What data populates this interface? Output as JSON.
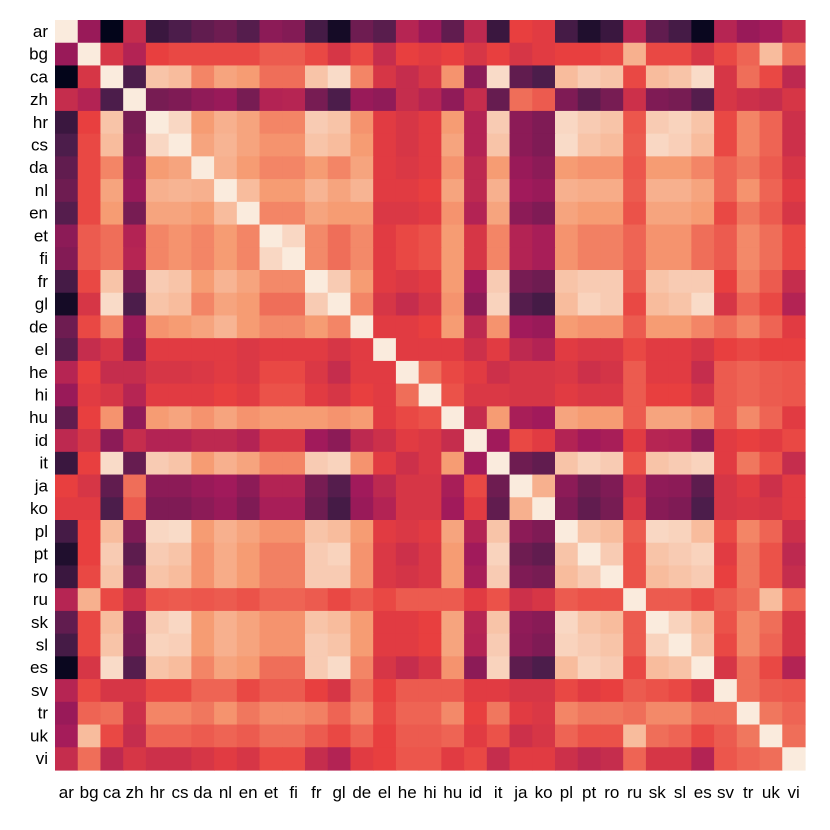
{
  "chart_data": {
    "type": "heatmap",
    "title": "",
    "xlabel": "",
    "ylabel": "",
    "labels": [
      "ar",
      "bg",
      "ca",
      "zh",
      "hr",
      "cs",
      "da",
      "nl",
      "en",
      "et",
      "fi",
      "fr",
      "gl",
      "de",
      "el",
      "he",
      "hi",
      "hu",
      "id",
      "it",
      "ja",
      "ko",
      "pl",
      "pt",
      "ro",
      "ru",
      "sk",
      "sl",
      "es",
      "sv",
      "tr",
      "uk",
      "vi"
    ],
    "value_range": [
      0,
      1
    ],
    "colorscale": [
      "#03051a",
      "#4c1d4b",
      "#a11a5b",
      "#e83f3f",
      "#f69c73",
      "#faebdd"
    ],
    "grid": false,
    "values": [
      [
        1.0,
        0.38,
        0.0,
        0.5,
        0.15,
        0.2,
        0.25,
        0.28,
        0.22,
        0.35,
        0.33,
        0.18,
        0.05,
        0.28,
        0.23,
        0.46,
        0.38,
        0.25,
        0.48,
        0.15,
        0.6,
        0.58,
        0.18,
        0.08,
        0.15,
        0.46,
        0.25,
        0.18,
        0.02,
        0.46,
        0.38,
        0.41,
        0.5
      ],
      [
        0.38,
        1.0,
        0.55,
        0.45,
        0.6,
        0.62,
        0.62,
        0.62,
        0.62,
        0.66,
        0.66,
        0.62,
        0.55,
        0.62,
        0.5,
        0.6,
        0.58,
        0.6,
        0.55,
        0.6,
        0.55,
        0.58,
        0.6,
        0.6,
        0.62,
        0.85,
        0.62,
        0.62,
        0.55,
        0.62,
        0.68,
        0.88,
        0.7
      ],
      [
        0.0,
        0.55,
        1.0,
        0.2,
        0.9,
        0.88,
        0.75,
        0.82,
        0.8,
        0.7,
        0.7,
        0.9,
        0.96,
        0.75,
        0.55,
        0.5,
        0.55,
        0.78,
        0.35,
        0.96,
        0.25,
        0.2,
        0.88,
        0.92,
        0.9,
        0.62,
        0.88,
        0.9,
        0.96,
        0.55,
        0.7,
        0.62,
        0.48
      ],
      [
        0.5,
        0.45,
        0.2,
        1.0,
        0.3,
        0.32,
        0.36,
        0.38,
        0.3,
        0.45,
        0.46,
        0.3,
        0.2,
        0.38,
        0.36,
        0.5,
        0.46,
        0.36,
        0.5,
        0.26,
        0.7,
        0.66,
        0.32,
        0.24,
        0.3,
        0.52,
        0.32,
        0.3,
        0.22,
        0.55,
        0.52,
        0.5,
        0.55
      ],
      [
        0.15,
        0.6,
        0.9,
        0.3,
        1.0,
        0.95,
        0.8,
        0.85,
        0.82,
        0.75,
        0.75,
        0.92,
        0.9,
        0.78,
        0.58,
        0.55,
        0.58,
        0.8,
        0.45,
        0.92,
        0.35,
        0.32,
        0.95,
        0.92,
        0.9,
        0.65,
        0.92,
        0.94,
        0.9,
        0.62,
        0.75,
        0.68,
        0.52
      ],
      [
        0.2,
        0.62,
        0.88,
        0.32,
        0.95,
        1.0,
        0.82,
        0.86,
        0.82,
        0.78,
        0.78,
        0.9,
        0.88,
        0.8,
        0.58,
        0.55,
        0.58,
        0.82,
        0.45,
        0.9,
        0.35,
        0.32,
        0.96,
        0.9,
        0.88,
        0.66,
        0.95,
        0.93,
        0.88,
        0.62,
        0.75,
        0.68,
        0.52
      ],
      [
        0.25,
        0.62,
        0.75,
        0.36,
        0.8,
        0.82,
        1.0,
        0.85,
        0.8,
        0.75,
        0.75,
        0.8,
        0.75,
        0.82,
        0.58,
        0.56,
        0.58,
        0.78,
        0.48,
        0.8,
        0.38,
        0.35,
        0.8,
        0.78,
        0.78,
        0.65,
        0.8,
        0.8,
        0.75,
        0.68,
        0.72,
        0.66,
        0.55
      ],
      [
        0.28,
        0.62,
        0.82,
        0.38,
        0.85,
        0.86,
        0.85,
        1.0,
        0.88,
        0.8,
        0.8,
        0.86,
        0.82,
        0.86,
        0.58,
        0.58,
        0.6,
        0.82,
        0.48,
        0.85,
        0.4,
        0.38,
        0.85,
        0.84,
        0.84,
        0.66,
        0.85,
        0.85,
        0.82,
        0.68,
        0.78,
        0.68,
        0.58
      ],
      [
        0.22,
        0.62,
        0.8,
        0.3,
        0.82,
        0.82,
        0.8,
        0.88,
        1.0,
        0.75,
        0.75,
        0.82,
        0.8,
        0.8,
        0.56,
        0.56,
        0.58,
        0.78,
        0.45,
        0.82,
        0.35,
        0.32,
        0.82,
        0.8,
        0.8,
        0.64,
        0.82,
        0.82,
        0.8,
        0.62,
        0.72,
        0.66,
        0.55
      ],
      [
        0.35,
        0.66,
        0.7,
        0.45,
        0.75,
        0.78,
        0.75,
        0.8,
        0.75,
        1.0,
        0.95,
        0.76,
        0.7,
        0.76,
        0.58,
        0.62,
        0.64,
        0.8,
        0.55,
        0.75,
        0.45,
        0.42,
        0.78,
        0.74,
        0.74,
        0.68,
        0.78,
        0.78,
        0.7,
        0.66,
        0.76,
        0.7,
        0.62
      ],
      [
        0.33,
        0.66,
        0.7,
        0.46,
        0.75,
        0.78,
        0.75,
        0.8,
        0.75,
        0.95,
        1.0,
        0.76,
        0.7,
        0.76,
        0.58,
        0.62,
        0.64,
        0.8,
        0.55,
        0.75,
        0.45,
        0.42,
        0.78,
        0.74,
        0.74,
        0.68,
        0.78,
        0.78,
        0.7,
        0.66,
        0.76,
        0.7,
        0.62
      ],
      [
        0.18,
        0.62,
        0.9,
        0.3,
        0.92,
        0.9,
        0.8,
        0.86,
        0.82,
        0.76,
        0.76,
        1.0,
        0.92,
        0.8,
        0.58,
        0.56,
        0.58,
        0.8,
        0.4,
        0.92,
        0.3,
        0.28,
        0.9,
        0.92,
        0.92,
        0.66,
        0.9,
        0.92,
        0.92,
        0.6,
        0.74,
        0.66,
        0.5
      ],
      [
        0.05,
        0.55,
        0.96,
        0.2,
        0.9,
        0.88,
        0.75,
        0.82,
        0.8,
        0.7,
        0.7,
        0.92,
        1.0,
        0.75,
        0.55,
        0.5,
        0.55,
        0.78,
        0.35,
        0.94,
        0.22,
        0.18,
        0.88,
        0.94,
        0.92,
        0.62,
        0.88,
        0.9,
        0.96,
        0.55,
        0.68,
        0.62,
        0.45
      ],
      [
        0.28,
        0.62,
        0.75,
        0.38,
        0.78,
        0.8,
        0.82,
        0.86,
        0.8,
        0.76,
        0.76,
        0.8,
        0.75,
        1.0,
        0.58,
        0.58,
        0.6,
        0.8,
        0.48,
        0.78,
        0.4,
        0.38,
        0.8,
        0.78,
        0.78,
        0.66,
        0.8,
        0.8,
        0.75,
        0.7,
        0.75,
        0.68,
        0.58
      ],
      [
        0.23,
        0.5,
        0.55,
        0.36,
        0.58,
        0.58,
        0.58,
        0.58,
        0.56,
        0.58,
        0.58,
        0.58,
        0.55,
        0.58,
        1.0,
        0.58,
        0.58,
        0.58,
        0.52,
        0.58,
        0.48,
        0.45,
        0.58,
        0.56,
        0.56,
        0.62,
        0.58,
        0.58,
        0.55,
        0.6,
        0.62,
        0.6,
        0.6
      ],
      [
        0.46,
        0.6,
        0.5,
        0.5,
        0.55,
        0.55,
        0.56,
        0.58,
        0.56,
        0.62,
        0.62,
        0.56,
        0.5,
        0.58,
        0.58,
        1.0,
        0.7,
        0.62,
        0.58,
        0.52,
        0.55,
        0.55,
        0.56,
        0.52,
        0.54,
        0.66,
        0.58,
        0.58,
        0.5,
        0.66,
        0.68,
        0.66,
        0.65
      ],
      [
        0.38,
        0.58,
        0.55,
        0.46,
        0.58,
        0.58,
        0.58,
        0.6,
        0.58,
        0.64,
        0.64,
        0.58,
        0.55,
        0.6,
        0.58,
        0.7,
        1.0,
        0.64,
        0.56,
        0.56,
        0.55,
        0.55,
        0.58,
        0.56,
        0.56,
        0.66,
        0.6,
        0.6,
        0.55,
        0.66,
        0.68,
        0.66,
        0.65
      ],
      [
        0.25,
        0.6,
        0.78,
        0.36,
        0.8,
        0.82,
        0.78,
        0.82,
        0.78,
        0.8,
        0.8,
        0.8,
        0.78,
        0.8,
        0.58,
        0.62,
        0.64,
        1.0,
        0.5,
        0.8,
        0.42,
        0.4,
        0.82,
        0.8,
        0.8,
        0.66,
        0.82,
        0.82,
        0.78,
        0.66,
        0.76,
        0.68,
        0.58
      ],
      [
        0.48,
        0.55,
        0.35,
        0.5,
        0.45,
        0.45,
        0.48,
        0.48,
        0.45,
        0.55,
        0.55,
        0.4,
        0.35,
        0.48,
        0.52,
        0.58,
        0.56,
        0.5,
        1.0,
        0.4,
        0.62,
        0.58,
        0.45,
        0.4,
        0.42,
        0.58,
        0.46,
        0.45,
        0.35,
        0.58,
        0.6,
        0.58,
        0.62
      ],
      [
        0.15,
        0.6,
        0.96,
        0.26,
        0.92,
        0.9,
        0.8,
        0.85,
        0.82,
        0.75,
        0.75,
        0.92,
        0.94,
        0.78,
        0.58,
        0.52,
        0.56,
        0.8,
        0.4,
        1.0,
        0.28,
        0.25,
        0.9,
        0.94,
        0.92,
        0.64,
        0.9,
        0.92,
        0.94,
        0.58,
        0.72,
        0.64,
        0.5
      ],
      [
        0.6,
        0.55,
        0.25,
        0.7,
        0.35,
        0.35,
        0.38,
        0.4,
        0.35,
        0.45,
        0.45,
        0.3,
        0.22,
        0.4,
        0.48,
        0.55,
        0.55,
        0.42,
        0.62,
        0.28,
        1.0,
        0.85,
        0.35,
        0.28,
        0.32,
        0.52,
        0.36,
        0.35,
        0.24,
        0.55,
        0.58,
        0.52,
        0.58
      ],
      [
        0.58,
        0.58,
        0.2,
        0.66,
        0.32,
        0.32,
        0.35,
        0.38,
        0.32,
        0.42,
        0.42,
        0.28,
        0.18,
        0.38,
        0.45,
        0.55,
        0.55,
        0.4,
        0.58,
        0.25,
        0.85,
        1.0,
        0.32,
        0.25,
        0.3,
        0.55,
        0.34,
        0.32,
        0.2,
        0.55,
        0.56,
        0.55,
        0.58
      ],
      [
        0.18,
        0.6,
        0.88,
        0.32,
        0.95,
        0.96,
        0.8,
        0.85,
        0.82,
        0.78,
        0.78,
        0.9,
        0.88,
        0.8,
        0.58,
        0.56,
        0.58,
        0.82,
        0.45,
        0.9,
        0.35,
        0.32,
        1.0,
        0.9,
        0.88,
        0.66,
        0.95,
        0.94,
        0.88,
        0.62,
        0.75,
        0.68,
        0.52
      ],
      [
        0.08,
        0.6,
        0.92,
        0.24,
        0.92,
        0.9,
        0.78,
        0.84,
        0.8,
        0.74,
        0.74,
        0.92,
        0.94,
        0.78,
        0.56,
        0.52,
        0.56,
        0.8,
        0.4,
        0.94,
        0.28,
        0.25,
        0.9,
        1.0,
        0.92,
        0.64,
        0.9,
        0.92,
        0.94,
        0.58,
        0.72,
        0.64,
        0.48
      ],
      [
        0.15,
        0.62,
        0.9,
        0.3,
        0.9,
        0.88,
        0.78,
        0.84,
        0.8,
        0.74,
        0.74,
        0.92,
        0.92,
        0.78,
        0.56,
        0.54,
        0.56,
        0.8,
        0.42,
        0.92,
        0.32,
        0.3,
        0.88,
        0.92,
        1.0,
        0.64,
        0.88,
        0.9,
        0.92,
        0.6,
        0.72,
        0.64,
        0.5
      ],
      [
        0.46,
        0.85,
        0.62,
        0.52,
        0.65,
        0.66,
        0.65,
        0.66,
        0.64,
        0.68,
        0.68,
        0.66,
        0.62,
        0.66,
        0.62,
        0.66,
        0.66,
        0.66,
        0.58,
        0.64,
        0.52,
        0.55,
        0.66,
        0.64,
        0.64,
        1.0,
        0.66,
        0.66,
        0.62,
        0.66,
        0.7,
        0.88,
        0.68
      ],
      [
        0.25,
        0.62,
        0.88,
        0.32,
        0.92,
        0.95,
        0.8,
        0.85,
        0.82,
        0.78,
        0.78,
        0.9,
        0.88,
        0.8,
        0.58,
        0.58,
        0.6,
        0.82,
        0.46,
        0.9,
        0.36,
        0.34,
        0.95,
        0.9,
        0.88,
        0.66,
        1.0,
        0.94,
        0.88,
        0.64,
        0.76,
        0.7,
        0.55
      ],
      [
        0.18,
        0.62,
        0.9,
        0.3,
        0.94,
        0.93,
        0.8,
        0.85,
        0.82,
        0.78,
        0.78,
        0.92,
        0.9,
        0.8,
        0.58,
        0.58,
        0.6,
        0.82,
        0.45,
        0.92,
        0.35,
        0.32,
        0.94,
        0.92,
        0.9,
        0.66,
        0.94,
        1.0,
        0.9,
        0.62,
        0.76,
        0.68,
        0.55
      ],
      [
        0.02,
        0.55,
        0.96,
        0.22,
        0.9,
        0.88,
        0.75,
        0.82,
        0.8,
        0.7,
        0.7,
        0.92,
        0.96,
        0.75,
        0.55,
        0.5,
        0.55,
        0.78,
        0.35,
        0.94,
        0.24,
        0.2,
        0.88,
        0.94,
        0.92,
        0.62,
        0.88,
        0.9,
        1.0,
        0.55,
        0.7,
        0.62,
        0.45
      ],
      [
        0.46,
        0.62,
        0.55,
        0.55,
        0.62,
        0.62,
        0.68,
        0.68,
        0.62,
        0.66,
        0.66,
        0.6,
        0.55,
        0.7,
        0.6,
        0.66,
        0.66,
        0.66,
        0.58,
        0.58,
        0.55,
        0.55,
        0.62,
        0.58,
        0.6,
        0.66,
        0.64,
        0.62,
        0.55,
        1.0,
        0.7,
        0.66,
        0.65
      ],
      [
        0.38,
        0.68,
        0.7,
        0.52,
        0.75,
        0.75,
        0.72,
        0.78,
        0.72,
        0.76,
        0.76,
        0.74,
        0.68,
        0.75,
        0.62,
        0.68,
        0.68,
        0.76,
        0.6,
        0.72,
        0.58,
        0.56,
        0.75,
        0.72,
        0.72,
        0.7,
        0.76,
        0.76,
        0.7,
        0.7,
        1.0,
        0.72,
        0.68
      ],
      [
        0.41,
        0.88,
        0.62,
        0.5,
        0.68,
        0.68,
        0.66,
        0.68,
        0.66,
        0.7,
        0.7,
        0.66,
        0.62,
        0.68,
        0.6,
        0.66,
        0.66,
        0.68,
        0.58,
        0.64,
        0.52,
        0.55,
        0.68,
        0.64,
        0.64,
        0.88,
        0.7,
        0.68,
        0.62,
        0.66,
        0.72,
        1.0,
        0.7
      ],
      [
        0.5,
        0.7,
        0.48,
        0.55,
        0.52,
        0.52,
        0.55,
        0.58,
        0.55,
        0.62,
        0.62,
        0.5,
        0.45,
        0.58,
        0.6,
        0.65,
        0.65,
        0.58,
        0.62,
        0.5,
        0.58,
        0.58,
        0.52,
        0.48,
        0.5,
        0.68,
        0.55,
        0.55,
        0.45,
        0.65,
        0.68,
        0.7,
        1.0
      ]
    ]
  }
}
